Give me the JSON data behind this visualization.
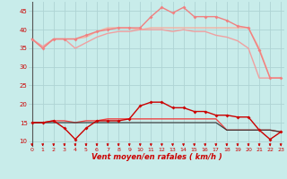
{
  "background_color": "#c8ecea",
  "grid_color": "#aed4d4",
  "xlabel": "Vent moyen/en rafales ( km/h )",
  "ylabel_ticks": [
    10,
    15,
    20,
    25,
    30,
    35,
    40,
    45
  ],
  "x_values": [
    0,
    1,
    2,
    3,
    4,
    5,
    6,
    7,
    8,
    9,
    10,
    11,
    12,
    13,
    14,
    15,
    16,
    17,
    18,
    19,
    20,
    21,
    22,
    23
  ],
  "series": [
    {
      "y": [
        37.5,
        35.0,
        37.5,
        37.5,
        37.5,
        38.5,
        39.5,
        40.0,
        40.5,
        40.5,
        40.5,
        43.5,
        46.0,
        44.5,
        46.0,
        43.5,
        43.5,
        43.5,
        42.5,
        41.0,
        40.5,
        34.5,
        27.0,
        27.0
      ],
      "color": "#f08080",
      "lw": 1.0,
      "marker": "D",
      "ms": 2.0,
      "zorder": 4
    },
    {
      "y": [
        37.5,
        35.0,
        37.5,
        37.5,
        37.5,
        38.0,
        39.5,
        40.5,
        40.5,
        40.5,
        40.0,
        40.5,
        40.5,
        40.5,
        40.5,
        40.5,
        40.5,
        40.5,
        40.5,
        40.5,
        40.5,
        35.0,
        27.0,
        27.0
      ],
      "color": "#f4b0a0",
      "lw": 1.0,
      "marker": null,
      "ms": 0,
      "zorder": 2
    },
    {
      "y": [
        37.5,
        35.5,
        37.5,
        37.5,
        35.0,
        36.5,
        38.0,
        39.0,
        39.5,
        39.5,
        40.0,
        40.0,
        40.0,
        39.5,
        40.0,
        39.5,
        39.5,
        38.5,
        38.0,
        37.0,
        35.0,
        27.0,
        27.0,
        27.0
      ],
      "color": "#f0a0a0",
      "lw": 1.0,
      "marker": null,
      "ms": 0,
      "zorder": 2
    },
    {
      "y": [
        15.0,
        15.0,
        15.5,
        13.5,
        10.5,
        13.5,
        15.5,
        15.5,
        15.5,
        16.0,
        19.5,
        20.5,
        20.5,
        19.0,
        19.0,
        18.0,
        18.0,
        17.0,
        17.0,
        16.5,
        16.5,
        13.0,
        10.5,
        12.5
      ],
      "color": "#cc0000",
      "lw": 1.0,
      "marker": "D",
      "ms": 2.0,
      "zorder": 5
    },
    {
      "y": [
        15.0,
        15.0,
        15.5,
        15.5,
        15.0,
        15.5,
        15.5,
        16.0,
        16.0,
        16.0,
        16.0,
        16.0,
        16.0,
        16.0,
        16.0,
        16.0,
        16.0,
        16.0,
        13.0,
        13.0,
        13.0,
        13.0,
        13.0,
        12.5
      ],
      "color": "#ee4444",
      "lw": 1.0,
      "marker": null,
      "ms": 0,
      "zorder": 3
    },
    {
      "y": [
        15.0,
        15.0,
        15.0,
        15.0,
        15.0,
        15.0,
        15.0,
        15.0,
        15.0,
        15.0,
        15.0,
        15.0,
        15.0,
        15.0,
        15.0,
        15.0,
        15.0,
        15.0,
        13.0,
        13.0,
        13.0,
        13.0,
        13.0,
        12.5
      ],
      "color": "#333333",
      "lw": 0.8,
      "marker": null,
      "ms": 0,
      "zorder": 3
    }
  ],
  "arrow_color": "#cc0000",
  "tick_label_color": "#cc0000",
  "axis_label_color": "#cc0000",
  "vline_color": "#555555",
  "ylim": [
    8.5,
    47.5
  ],
  "xlim": [
    -0.3,
    23.3
  ]
}
